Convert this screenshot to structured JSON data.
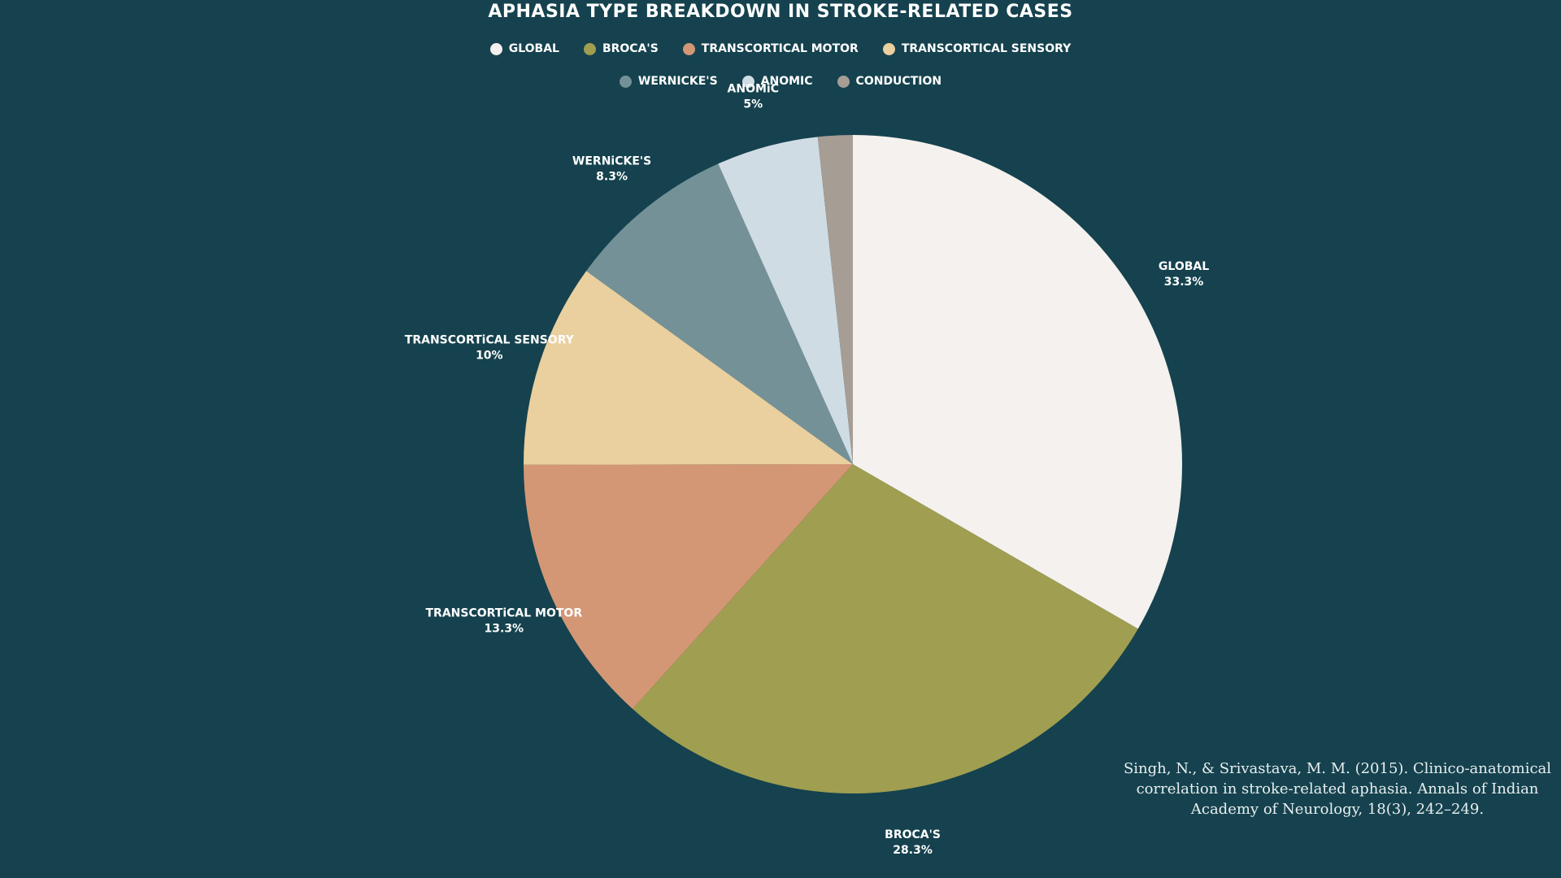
{
  "chart_data": {
    "type": "pie",
    "title": "APHASiA TYPE BREAKDOWN IN STROKE-RELATED CASES",
    "legend_position": "top",
    "slices": [
      {
        "label": "GLOBAL",
        "value": 33.3,
        "display": "33.3%",
        "color": "#f4f1ee"
      },
      {
        "label": "BROCA'S",
        "value": 28.3,
        "display": "28.3%",
        "color": "#a09e50"
      },
      {
        "label": "TRANSCORTiCAL MOTOR",
        "value": 13.3,
        "display": "13.3%",
        "color": "#d39775"
      },
      {
        "label": "TRANSCORTiCAL SENSORY",
        "value": 10,
        "display": "10%",
        "color": "#eacf9f"
      },
      {
        "label": "WERNiCKE'S",
        "value": 8.3,
        "display": "8.3%",
        "color": "#749198"
      },
      {
        "label": "ANOMiC",
        "value": 5,
        "display": "5%",
        "color": "#d0dce4"
      },
      {
        "label": "CONDUCTiON",
        "value": 1.7,
        "display": "",
        "color": "#a69d94"
      }
    ]
  },
  "legend": {
    "row1": [
      "GLOBAL",
      "BROCA'S",
      "TRANSCORTiCAL MOTOR",
      "TRANSCORTiCAL SENSORY"
    ],
    "row2": [
      "WERNiCKE'S",
      "ANOMiC",
      "CONDUCTiON"
    ]
  },
  "citation": "Singh, N., & Srivastava, M. M. (2015). Clinico-anatomical correlation in stroke-related aphasia. Annals of Indian Academy of Neurology, 18(3), 242–249.",
  "colors": {
    "background": "#15424e",
    "text": "#ffffff"
  }
}
